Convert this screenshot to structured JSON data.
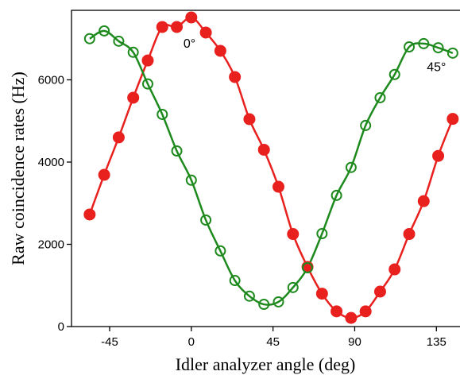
{
  "chart_data": {
    "type": "line",
    "xlabel": "Idler analyzer angle (deg)",
    "ylabel": "Raw coincidence rates (Hz)",
    "x": [
      -56,
      -48,
      -40,
      -32,
      -24,
      -16,
      -8,
      0,
      8,
      16,
      24,
      32,
      40,
      48,
      56,
      64,
      72,
      80,
      88,
      96,
      104,
      112,
      120,
      128,
      136,
      144
    ],
    "series": [
      {
        "color": "#e8201e",
        "marker": "filled",
        "values": [
          2725,
          3690,
          4600,
          5565,
          6470,
          7285,
          7285,
          7517,
          7150,
          6705,
          6068,
          5043,
          4300,
          3400,
          2250,
          1450,
          800,
          370,
          210,
          370,
          850,
          1390,
          2250,
          3050,
          4150,
          5050
        ]
      },
      {
        "color": "#1e8a1e",
        "marker": "open",
        "values": [
          7000,
          7190,
          6940,
          6670,
          5900,
          5160,
          4270,
          3560,
          2590,
          1840,
          1120,
          740,
          540,
          600,
          950,
          1430,
          2260,
          3190,
          3870,
          4890,
          5565,
          6130,
          6800,
          6880,
          6780,
          6650
        ]
      }
    ],
    "annotations": [
      {
        "text": "0°",
        "x": -1,
        "y": 6780
      },
      {
        "text": "45°",
        "x": 135,
        "y": 6210
      }
    ],
    "xlim": [
      -66,
      148
    ],
    "ylim": [
      0,
      7690
    ],
    "xticks": [
      -45,
      0,
      45,
      90,
      135
    ],
    "yticks": [
      0,
      2000,
      4000,
      6000
    ]
  }
}
